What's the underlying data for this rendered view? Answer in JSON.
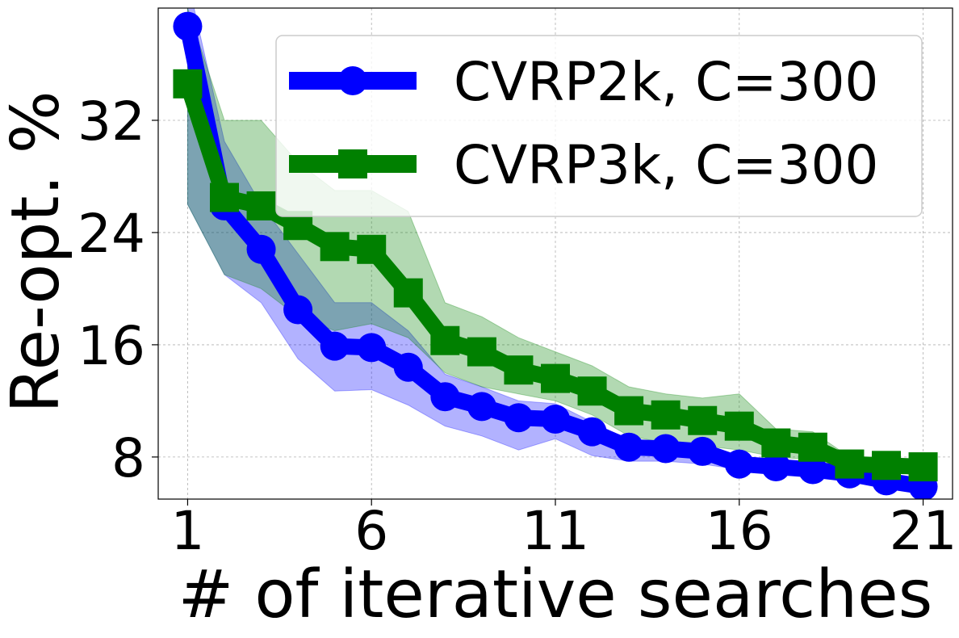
{
  "chart_data": {
    "type": "line",
    "xlabel": "# of iterative searches",
    "ylabel": "Re-opt. %",
    "xlim": [
      0.2,
      21.8
    ],
    "ylim": [
      5.0,
      40.0
    ],
    "xticks": [
      1,
      6,
      11,
      16,
      21
    ],
    "yticks": [
      8,
      16,
      24,
      32
    ],
    "grid": true,
    "legend_position": "top-right",
    "x": [
      1,
      2,
      3,
      4,
      5,
      6,
      7,
      8,
      9,
      10,
      11,
      12,
      13,
      14,
      15,
      16,
      17,
      18,
      19,
      20,
      21
    ],
    "series": [
      {
        "name": "CVRP2k, C=300",
        "color": "#0000ff",
        "marker": "circle",
        "values": [
          38.7,
          25.9,
          22.8,
          18.5,
          15.9,
          15.8,
          14.4,
          12.3,
          11.6,
          10.8,
          10.7,
          9.8,
          8.7,
          8.6,
          8.4,
          7.5,
          7.3,
          7.1,
          6.8,
          6.3,
          5.9
        ],
        "band_low": [
          26.0,
          21.0,
          19.0,
          15.0,
          12.7,
          12.8,
          11.7,
          10.2,
          9.5,
          8.5,
          9.3,
          8.1,
          7.7,
          7.7,
          7.5,
          7.1,
          6.9,
          6.8,
          6.5,
          6.1,
          5.8
        ],
        "band_high": [
          42.0,
          30.5,
          26.0,
          22.5,
          19.0,
          19.0,
          17.0,
          13.9,
          13.0,
          12.0,
          11.8,
          10.5,
          9.2,
          9.0,
          8.9,
          7.9,
          7.5,
          7.2,
          6.9,
          6.6,
          6.2
        ]
      },
      {
        "name": "CVRP3k, C=300",
        "color": "#008000",
        "marker": "square",
        "values": [
          34.6,
          26.5,
          25.9,
          24.5,
          23.0,
          22.8,
          19.7,
          16.3,
          15.5,
          14.2,
          13.6,
          12.7,
          11.3,
          11.0,
          10.6,
          10.2,
          9.0,
          8.7,
          7.5,
          7.4,
          7.3
        ],
        "band_low": [
          26.0,
          21.0,
          20.0,
          18.0,
          17.0,
          17.5,
          16.5,
          14.0,
          13.0,
          12.5,
          12.0,
          11.0,
          9.5,
          9.0,
          8.8,
          8.5,
          8.0,
          7.8,
          7.2,
          7.0,
          7.0
        ],
        "band_high": [
          40.0,
          32.0,
          32.0,
          29.0,
          27.0,
          27.0,
          25.5,
          19.0,
          18.0,
          16.5,
          15.5,
          14.5,
          13.0,
          12.5,
          12.2,
          12.5,
          10.0,
          9.8,
          8.0,
          7.8,
          7.6
        ]
      }
    ]
  }
}
